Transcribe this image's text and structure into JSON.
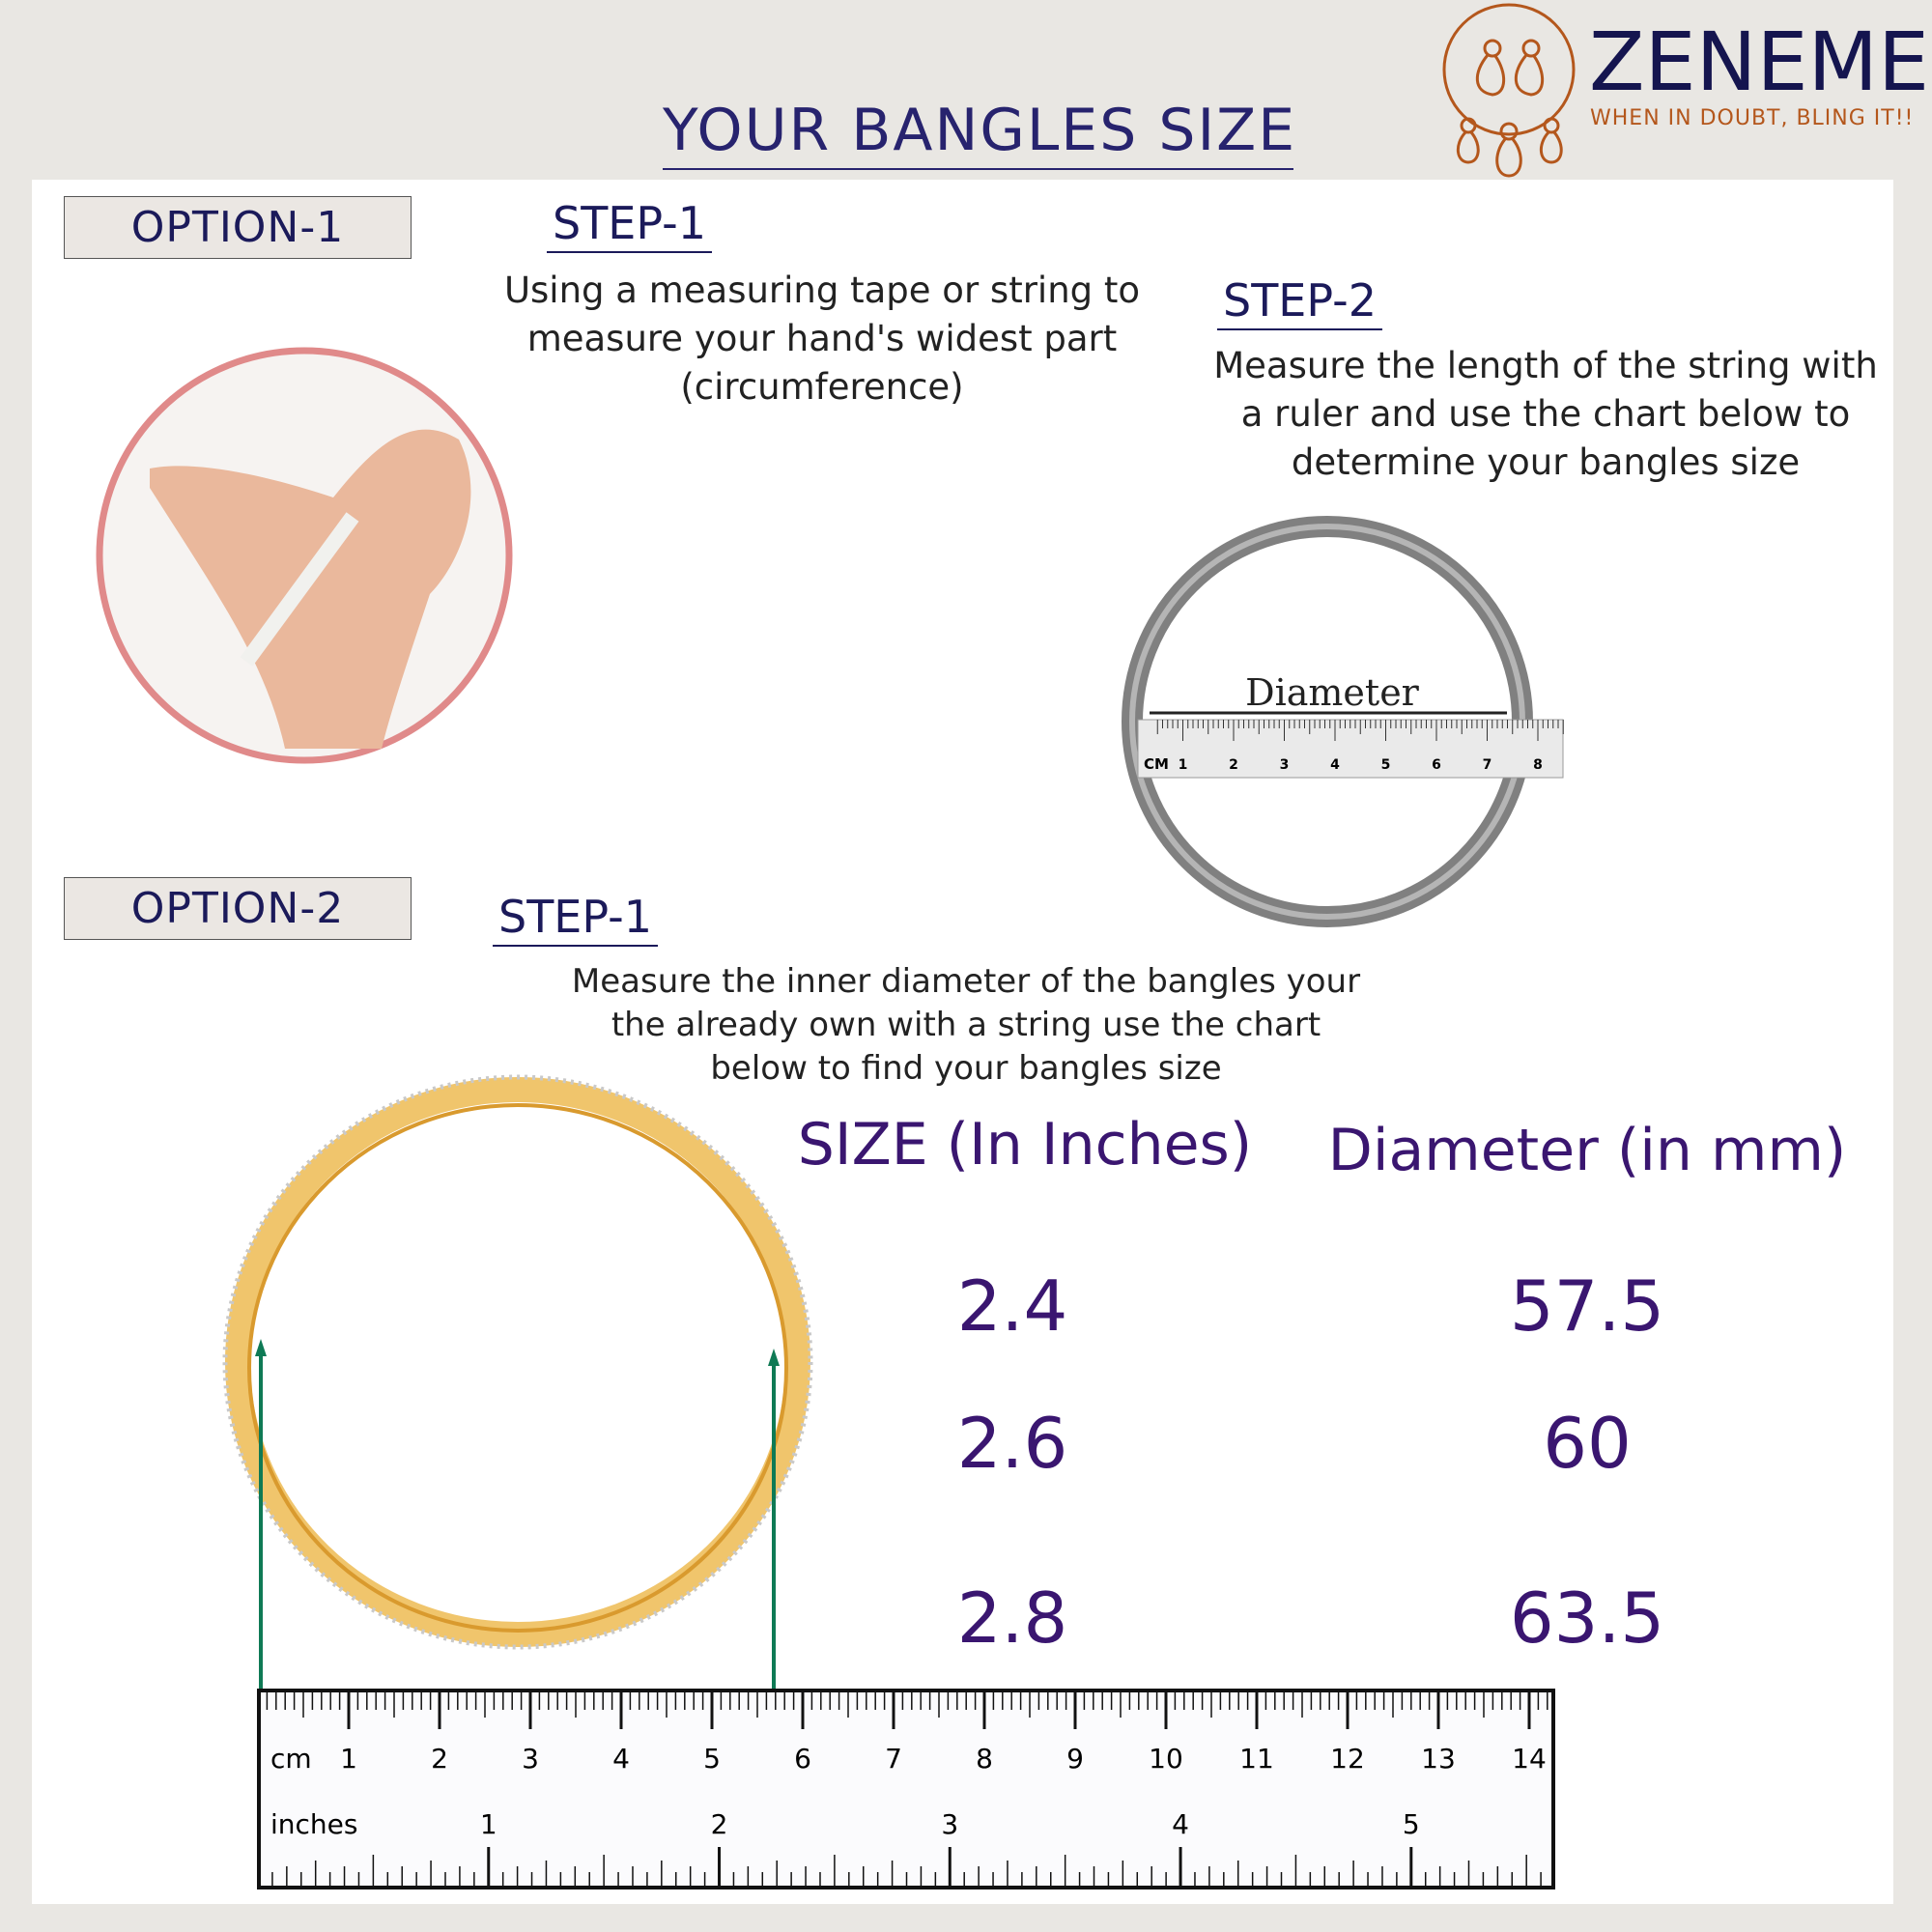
{
  "title": "YOUR BANGLES SIZE",
  "brand": {
    "name": "ZENEME",
    "tagline": "WHEN IN DOUBT, BLING IT!!",
    "color": "#b4571c"
  },
  "option1": {
    "label": "OPTION-1",
    "step1": {
      "title": "STEP-1",
      "lines": [
        "Using a measuring tape or string to",
        "measure your hand's widest part",
        "(circumference)"
      ]
    },
    "step2": {
      "title": "STEP-2",
      "lines": [
        "Measure the length of the string with",
        "a ruler  and use the chart below to",
        "determine your bangles size"
      ]
    },
    "diagram_label": "Diameter",
    "ruler_unit": "CM",
    "ruler_marks": [
      "1",
      "2",
      "3",
      "4",
      "5",
      "6",
      "7",
      "8"
    ]
  },
  "option2": {
    "label": "OPTION-2",
    "step1": {
      "title": "STEP-1",
      "lines": [
        "Measure the inner diameter of the bangles  your",
        "the already  own with a string use the chart",
        "below to find your bangles size"
      ]
    }
  },
  "size_table": {
    "headers": [
      "SIZE (In Inches)",
      "Diameter (in mm)"
    ],
    "rows": [
      [
        "2.4",
        "57.5"
      ],
      [
        "2.6",
        "60"
      ],
      [
        "2.8",
        "63.5"
      ]
    ]
  },
  "ruler": {
    "cm_label": "cm",
    "cm_marks": [
      "1",
      "2",
      "3",
      "4",
      "5",
      "6",
      "7",
      "8",
      "9",
      "10",
      "11",
      "12",
      "13",
      "14"
    ],
    "inch_label": "inches",
    "inch_marks": [
      "1",
      "2",
      "3",
      "4",
      "5"
    ]
  }
}
